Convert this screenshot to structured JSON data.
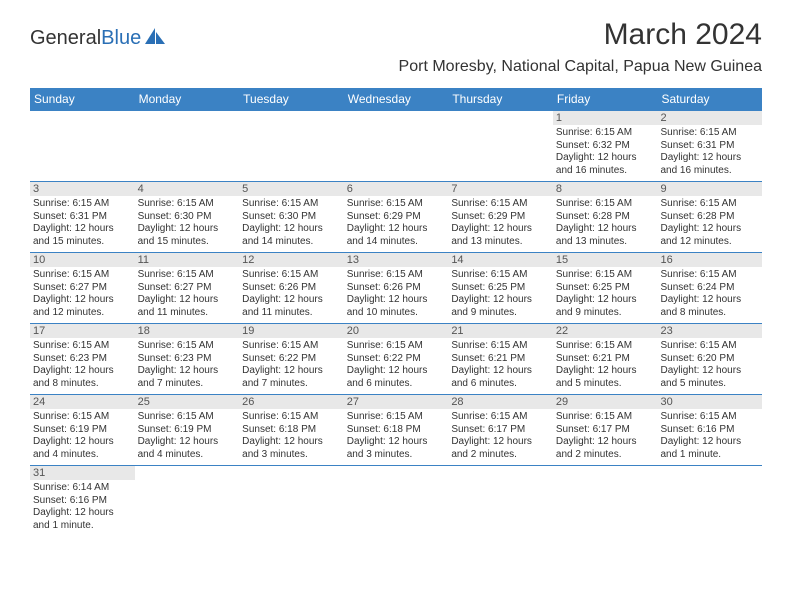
{
  "logo": {
    "part1": "General",
    "part2": "Blue"
  },
  "title": "March 2024",
  "location": "Port Moresby, National Capital, Papua New Guinea",
  "weekdays": [
    "Sunday",
    "Monday",
    "Tuesday",
    "Wednesday",
    "Thursday",
    "Friday",
    "Saturday"
  ],
  "colors": {
    "header_bg": "#3b82c4",
    "grey_bg": "#e8e8e8",
    "text": "#333333",
    "rule": "#3b82c4"
  },
  "weeks": [
    {
      "nums": [
        "",
        "",
        "",
        "",
        "",
        "1",
        "2"
      ],
      "cells": [
        null,
        null,
        null,
        null,
        null,
        {
          "sunrise": "Sunrise: 6:15 AM",
          "sunset": "Sunset: 6:32 PM",
          "day1": "Daylight: 12 hours",
          "day2": "and 16 minutes."
        },
        {
          "sunrise": "Sunrise: 6:15 AM",
          "sunset": "Sunset: 6:31 PM",
          "day1": "Daylight: 12 hours",
          "day2": "and 16 minutes."
        }
      ]
    },
    {
      "nums": [
        "3",
        "4",
        "5",
        "6",
        "7",
        "8",
        "9"
      ],
      "cells": [
        {
          "sunrise": "Sunrise: 6:15 AM",
          "sunset": "Sunset: 6:31 PM",
          "day1": "Daylight: 12 hours",
          "day2": "and 15 minutes."
        },
        {
          "sunrise": "Sunrise: 6:15 AM",
          "sunset": "Sunset: 6:30 PM",
          "day1": "Daylight: 12 hours",
          "day2": "and 15 minutes."
        },
        {
          "sunrise": "Sunrise: 6:15 AM",
          "sunset": "Sunset: 6:30 PM",
          "day1": "Daylight: 12 hours",
          "day2": "and 14 minutes."
        },
        {
          "sunrise": "Sunrise: 6:15 AM",
          "sunset": "Sunset: 6:29 PM",
          "day1": "Daylight: 12 hours",
          "day2": "and 14 minutes."
        },
        {
          "sunrise": "Sunrise: 6:15 AM",
          "sunset": "Sunset: 6:29 PM",
          "day1": "Daylight: 12 hours",
          "day2": "and 13 minutes."
        },
        {
          "sunrise": "Sunrise: 6:15 AM",
          "sunset": "Sunset: 6:28 PM",
          "day1": "Daylight: 12 hours",
          "day2": "and 13 minutes."
        },
        {
          "sunrise": "Sunrise: 6:15 AM",
          "sunset": "Sunset: 6:28 PM",
          "day1": "Daylight: 12 hours",
          "day2": "and 12 minutes."
        }
      ]
    },
    {
      "nums": [
        "10",
        "11",
        "12",
        "13",
        "14",
        "15",
        "16"
      ],
      "cells": [
        {
          "sunrise": "Sunrise: 6:15 AM",
          "sunset": "Sunset: 6:27 PM",
          "day1": "Daylight: 12 hours",
          "day2": "and 12 minutes."
        },
        {
          "sunrise": "Sunrise: 6:15 AM",
          "sunset": "Sunset: 6:27 PM",
          "day1": "Daylight: 12 hours",
          "day2": "and 11 minutes."
        },
        {
          "sunrise": "Sunrise: 6:15 AM",
          "sunset": "Sunset: 6:26 PM",
          "day1": "Daylight: 12 hours",
          "day2": "and 11 minutes."
        },
        {
          "sunrise": "Sunrise: 6:15 AM",
          "sunset": "Sunset: 6:26 PM",
          "day1": "Daylight: 12 hours",
          "day2": "and 10 minutes."
        },
        {
          "sunrise": "Sunrise: 6:15 AM",
          "sunset": "Sunset: 6:25 PM",
          "day1": "Daylight: 12 hours",
          "day2": "and 9 minutes."
        },
        {
          "sunrise": "Sunrise: 6:15 AM",
          "sunset": "Sunset: 6:25 PM",
          "day1": "Daylight: 12 hours",
          "day2": "and 9 minutes."
        },
        {
          "sunrise": "Sunrise: 6:15 AM",
          "sunset": "Sunset: 6:24 PM",
          "day1": "Daylight: 12 hours",
          "day2": "and 8 minutes."
        }
      ]
    },
    {
      "nums": [
        "17",
        "18",
        "19",
        "20",
        "21",
        "22",
        "23"
      ],
      "cells": [
        {
          "sunrise": "Sunrise: 6:15 AM",
          "sunset": "Sunset: 6:23 PM",
          "day1": "Daylight: 12 hours",
          "day2": "and 8 minutes."
        },
        {
          "sunrise": "Sunrise: 6:15 AM",
          "sunset": "Sunset: 6:23 PM",
          "day1": "Daylight: 12 hours",
          "day2": "and 7 minutes."
        },
        {
          "sunrise": "Sunrise: 6:15 AM",
          "sunset": "Sunset: 6:22 PM",
          "day1": "Daylight: 12 hours",
          "day2": "and 7 minutes."
        },
        {
          "sunrise": "Sunrise: 6:15 AM",
          "sunset": "Sunset: 6:22 PM",
          "day1": "Daylight: 12 hours",
          "day2": "and 6 minutes."
        },
        {
          "sunrise": "Sunrise: 6:15 AM",
          "sunset": "Sunset: 6:21 PM",
          "day1": "Daylight: 12 hours",
          "day2": "and 6 minutes."
        },
        {
          "sunrise": "Sunrise: 6:15 AM",
          "sunset": "Sunset: 6:21 PM",
          "day1": "Daylight: 12 hours",
          "day2": "and 5 minutes."
        },
        {
          "sunrise": "Sunrise: 6:15 AM",
          "sunset": "Sunset: 6:20 PM",
          "day1": "Daylight: 12 hours",
          "day2": "and 5 minutes."
        }
      ]
    },
    {
      "nums": [
        "24",
        "25",
        "26",
        "27",
        "28",
        "29",
        "30"
      ],
      "cells": [
        {
          "sunrise": "Sunrise: 6:15 AM",
          "sunset": "Sunset: 6:19 PM",
          "day1": "Daylight: 12 hours",
          "day2": "and 4 minutes."
        },
        {
          "sunrise": "Sunrise: 6:15 AM",
          "sunset": "Sunset: 6:19 PM",
          "day1": "Daylight: 12 hours",
          "day2": "and 4 minutes."
        },
        {
          "sunrise": "Sunrise: 6:15 AM",
          "sunset": "Sunset: 6:18 PM",
          "day1": "Daylight: 12 hours",
          "day2": "and 3 minutes."
        },
        {
          "sunrise": "Sunrise: 6:15 AM",
          "sunset": "Sunset: 6:18 PM",
          "day1": "Daylight: 12 hours",
          "day2": "and 3 minutes."
        },
        {
          "sunrise": "Sunrise: 6:15 AM",
          "sunset": "Sunset: 6:17 PM",
          "day1": "Daylight: 12 hours",
          "day2": "and 2 minutes."
        },
        {
          "sunrise": "Sunrise: 6:15 AM",
          "sunset": "Sunset: 6:17 PM",
          "day1": "Daylight: 12 hours",
          "day2": "and 2 minutes."
        },
        {
          "sunrise": "Sunrise: 6:15 AM",
          "sunset": "Sunset: 6:16 PM",
          "day1": "Daylight: 12 hours",
          "day2": "and 1 minute."
        }
      ]
    },
    {
      "nums": [
        "31",
        "",
        "",
        "",
        "",
        "",
        ""
      ],
      "cells": [
        {
          "sunrise": "Sunrise: 6:14 AM",
          "sunset": "Sunset: 6:16 PM",
          "day1": "Daylight: 12 hours",
          "day2": "and 1 minute."
        },
        null,
        null,
        null,
        null,
        null,
        null
      ]
    }
  ]
}
